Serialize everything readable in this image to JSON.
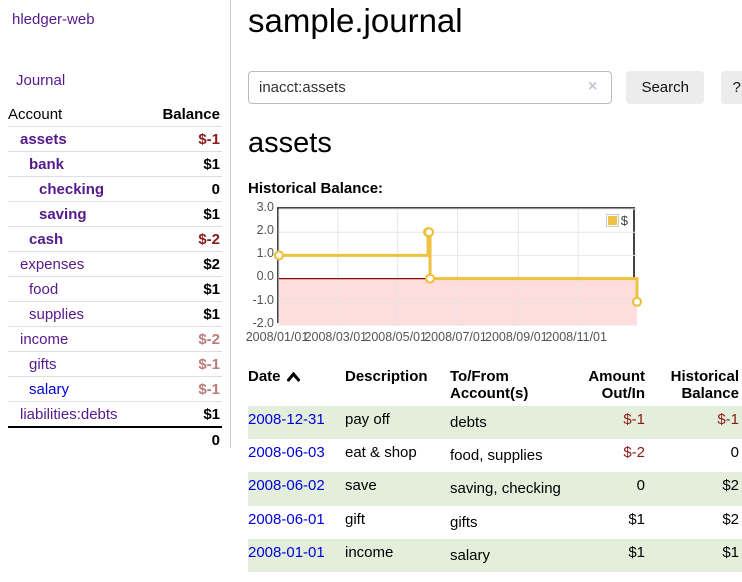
{
  "app": {
    "title": "hledger-web"
  },
  "sidebar": {
    "nav": {
      "journal": "Journal"
    },
    "accounts": {
      "headers": {
        "account": "Account",
        "balance": "Balance"
      },
      "rows": [
        {
          "name": "assets",
          "balance": "$-1"
        },
        {
          "name": "bank",
          "balance": "$1"
        },
        {
          "name": "checking",
          "balance": "0"
        },
        {
          "name": "saving",
          "balance": "$1"
        },
        {
          "name": "cash",
          "balance": "$-2"
        },
        {
          "name": "expenses",
          "balance": "$2"
        },
        {
          "name": "food",
          "balance": "$1"
        },
        {
          "name": "supplies",
          "balance": "$1"
        },
        {
          "name": "income",
          "balance": "$-2"
        },
        {
          "name": "gifts",
          "balance": "$-1"
        },
        {
          "name": "salary",
          "balance": "$-1"
        },
        {
          "name": "liabilities:debts",
          "balance": "$1"
        }
      ],
      "total": "0"
    }
  },
  "header": {
    "title": "sample.journal"
  },
  "search": {
    "value": "inacct:assets",
    "clear_icon": "×",
    "button_label": "Search",
    "help_label": "?"
  },
  "account_page": {
    "heading": "assets",
    "chart_label": "Historical Balance:"
  },
  "chart_data": {
    "type": "line",
    "steps": true,
    "title": "Historical Balance:",
    "series": [
      {
        "name": "$",
        "color": "#edc240",
        "points": [
          [
            "2008-01-01",
            1
          ],
          [
            "2008-06-01",
            2
          ],
          [
            "2008-06-02",
            2
          ],
          [
            "2008-06-03",
            0
          ],
          [
            "2008-12-31",
            -1
          ]
        ]
      }
    ],
    "xlim": [
      "2008-01-01",
      "2008-12-31"
    ],
    "ylim": [
      -2,
      3
    ],
    "x_ticks": [
      "2008/01/01",
      "2008/03/01",
      "2008/05/01",
      "2008/07/01",
      "2008/09/01",
      "2008/11/01"
    ],
    "y_ticks": [
      "3.0",
      "2.0",
      "1.0",
      "0.0",
      "-1.0",
      "-2.0"
    ],
    "grid": true,
    "legend_position": "top-right",
    "colors": {
      "grid": "#e6e6e6",
      "negative_region_fill": "#ffdddd",
      "zero_line": "#8b0000",
      "plot_border": "#454545"
    }
  },
  "transactions": {
    "headers": {
      "date": "Date",
      "description": "Description",
      "tofrom": "To/From Account(s)",
      "amount": "Amount Out/In",
      "balance": "Historical Balance"
    },
    "rows": [
      {
        "date": "2008-12-31",
        "description": "pay off",
        "tofrom": "debts",
        "amount": "$-1",
        "balance": "$-1"
      },
      {
        "date": "2008-06-03",
        "description": "eat & shop",
        "tofrom": "food, supplies",
        "amount": "$-2",
        "balance": "0"
      },
      {
        "date": "2008-06-02",
        "description": "save",
        "tofrom": "saving, checking",
        "amount": "0",
        "balance": "$2"
      },
      {
        "date": "2008-06-01",
        "description": "gift",
        "tofrom": "gifts",
        "amount": "$1",
        "balance": "$2"
      },
      {
        "date": "2008-01-01",
        "description": "income",
        "tofrom": "salary",
        "amount": "$1",
        "balance": "$1"
      }
    ]
  },
  "colors": {
    "link_purple": "#551a8b",
    "link_blue": "#0000dd",
    "negative_strong": "#8b1a1a",
    "negative_light": "#bd7b7b",
    "row_green": "#e3efdb",
    "series_gold": "#edc240"
  }
}
